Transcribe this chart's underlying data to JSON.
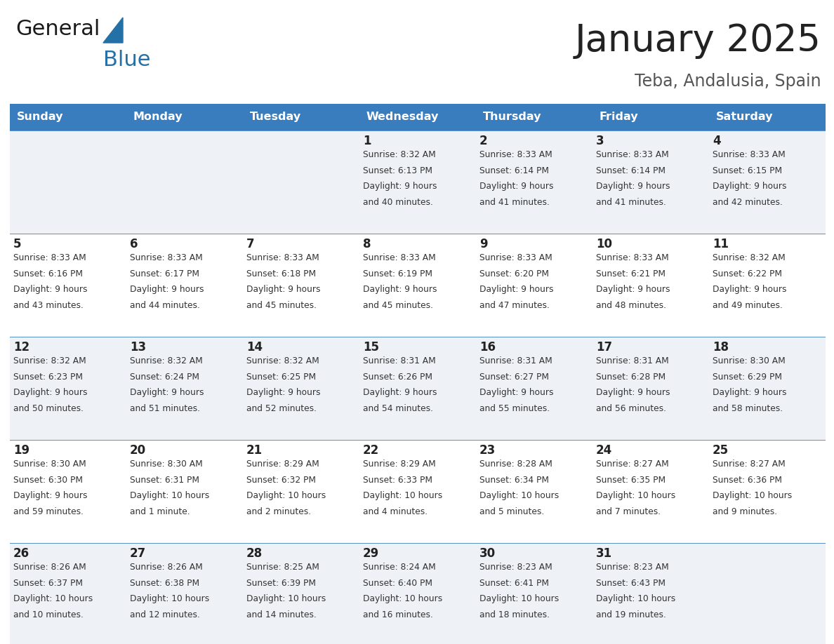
{
  "title": "January 2025",
  "subtitle": "Teba, Andalusia, Spain",
  "header_color": "#3a7dbf",
  "header_text_color": "#ffffff",
  "cell_bg_even": "#eef2f7",
  "cell_bg_odd": "#ffffff",
  "separator_color": "#3a7dbf",
  "days_of_week": [
    "Sunday",
    "Monday",
    "Tuesday",
    "Wednesday",
    "Thursday",
    "Friday",
    "Saturday"
  ],
  "calendar_data": [
    [
      {
        "day": "",
        "sunrise": "",
        "sunset": "",
        "daylight": ""
      },
      {
        "day": "",
        "sunrise": "",
        "sunset": "",
        "daylight": ""
      },
      {
        "day": "",
        "sunrise": "",
        "sunset": "",
        "daylight": ""
      },
      {
        "day": "1",
        "sunrise": "8:32 AM",
        "sunset": "6:13 PM",
        "daylight": "9 hours\nand 40 minutes."
      },
      {
        "day": "2",
        "sunrise": "8:33 AM",
        "sunset": "6:14 PM",
        "daylight": "9 hours\nand 41 minutes."
      },
      {
        "day": "3",
        "sunrise": "8:33 AM",
        "sunset": "6:14 PM",
        "daylight": "9 hours\nand 41 minutes."
      },
      {
        "day": "4",
        "sunrise": "8:33 AM",
        "sunset": "6:15 PM",
        "daylight": "9 hours\nand 42 minutes."
      }
    ],
    [
      {
        "day": "5",
        "sunrise": "8:33 AM",
        "sunset": "6:16 PM",
        "daylight": "9 hours\nand 43 minutes."
      },
      {
        "day": "6",
        "sunrise": "8:33 AM",
        "sunset": "6:17 PM",
        "daylight": "9 hours\nand 44 minutes."
      },
      {
        "day": "7",
        "sunrise": "8:33 AM",
        "sunset": "6:18 PM",
        "daylight": "9 hours\nand 45 minutes."
      },
      {
        "day": "8",
        "sunrise": "8:33 AM",
        "sunset": "6:19 PM",
        "daylight": "9 hours\nand 45 minutes."
      },
      {
        "day": "9",
        "sunrise": "8:33 AM",
        "sunset": "6:20 PM",
        "daylight": "9 hours\nand 47 minutes."
      },
      {
        "day": "10",
        "sunrise": "8:33 AM",
        "sunset": "6:21 PM",
        "daylight": "9 hours\nand 48 minutes."
      },
      {
        "day": "11",
        "sunrise": "8:32 AM",
        "sunset": "6:22 PM",
        "daylight": "9 hours\nand 49 minutes."
      }
    ],
    [
      {
        "day": "12",
        "sunrise": "8:32 AM",
        "sunset": "6:23 PM",
        "daylight": "9 hours\nand 50 minutes."
      },
      {
        "day": "13",
        "sunrise": "8:32 AM",
        "sunset": "6:24 PM",
        "daylight": "9 hours\nand 51 minutes."
      },
      {
        "day": "14",
        "sunrise": "8:32 AM",
        "sunset": "6:25 PM",
        "daylight": "9 hours\nand 52 minutes."
      },
      {
        "day": "15",
        "sunrise": "8:31 AM",
        "sunset": "6:26 PM",
        "daylight": "9 hours\nand 54 minutes."
      },
      {
        "day": "16",
        "sunrise": "8:31 AM",
        "sunset": "6:27 PM",
        "daylight": "9 hours\nand 55 minutes."
      },
      {
        "day": "17",
        "sunrise": "8:31 AM",
        "sunset": "6:28 PM",
        "daylight": "9 hours\nand 56 minutes."
      },
      {
        "day": "18",
        "sunrise": "8:30 AM",
        "sunset": "6:29 PM",
        "daylight": "9 hours\nand 58 minutes."
      }
    ],
    [
      {
        "day": "19",
        "sunrise": "8:30 AM",
        "sunset": "6:30 PM",
        "daylight": "9 hours\nand 59 minutes."
      },
      {
        "day": "20",
        "sunrise": "8:30 AM",
        "sunset": "6:31 PM",
        "daylight": "10 hours\nand 1 minute."
      },
      {
        "day": "21",
        "sunrise": "8:29 AM",
        "sunset": "6:32 PM",
        "daylight": "10 hours\nand 2 minutes."
      },
      {
        "day": "22",
        "sunrise": "8:29 AM",
        "sunset": "6:33 PM",
        "daylight": "10 hours\nand 4 minutes."
      },
      {
        "day": "23",
        "sunrise": "8:28 AM",
        "sunset": "6:34 PM",
        "daylight": "10 hours\nand 5 minutes."
      },
      {
        "day": "24",
        "sunrise": "8:27 AM",
        "sunset": "6:35 PM",
        "daylight": "10 hours\nand 7 minutes."
      },
      {
        "day": "25",
        "sunrise": "8:27 AM",
        "sunset": "6:36 PM",
        "daylight": "10 hours\nand 9 minutes."
      }
    ],
    [
      {
        "day": "26",
        "sunrise": "8:26 AM",
        "sunset": "6:37 PM",
        "daylight": "10 hours\nand 10 minutes."
      },
      {
        "day": "27",
        "sunrise": "8:26 AM",
        "sunset": "6:38 PM",
        "daylight": "10 hours\nand 12 minutes."
      },
      {
        "day": "28",
        "sunrise": "8:25 AM",
        "sunset": "6:39 PM",
        "daylight": "10 hours\nand 14 minutes."
      },
      {
        "day": "29",
        "sunrise": "8:24 AM",
        "sunset": "6:40 PM",
        "daylight": "10 hours\nand 16 minutes."
      },
      {
        "day": "30",
        "sunrise": "8:23 AM",
        "sunset": "6:41 PM",
        "daylight": "10 hours\nand 18 minutes."
      },
      {
        "day": "31",
        "sunrise": "8:23 AM",
        "sunset": "6:43 PM",
        "daylight": "10 hours\nand 19 minutes."
      },
      {
        "day": "",
        "sunrise": "",
        "sunset": "",
        "daylight": ""
      }
    ]
  ],
  "logo_text1": "General",
  "logo_text2": "Blue",
  "logo_color1": "#1a1a1a",
  "logo_color2": "#2471a8",
  "fig_width": 11.88,
  "fig_height": 9.18,
  "dpi": 100
}
